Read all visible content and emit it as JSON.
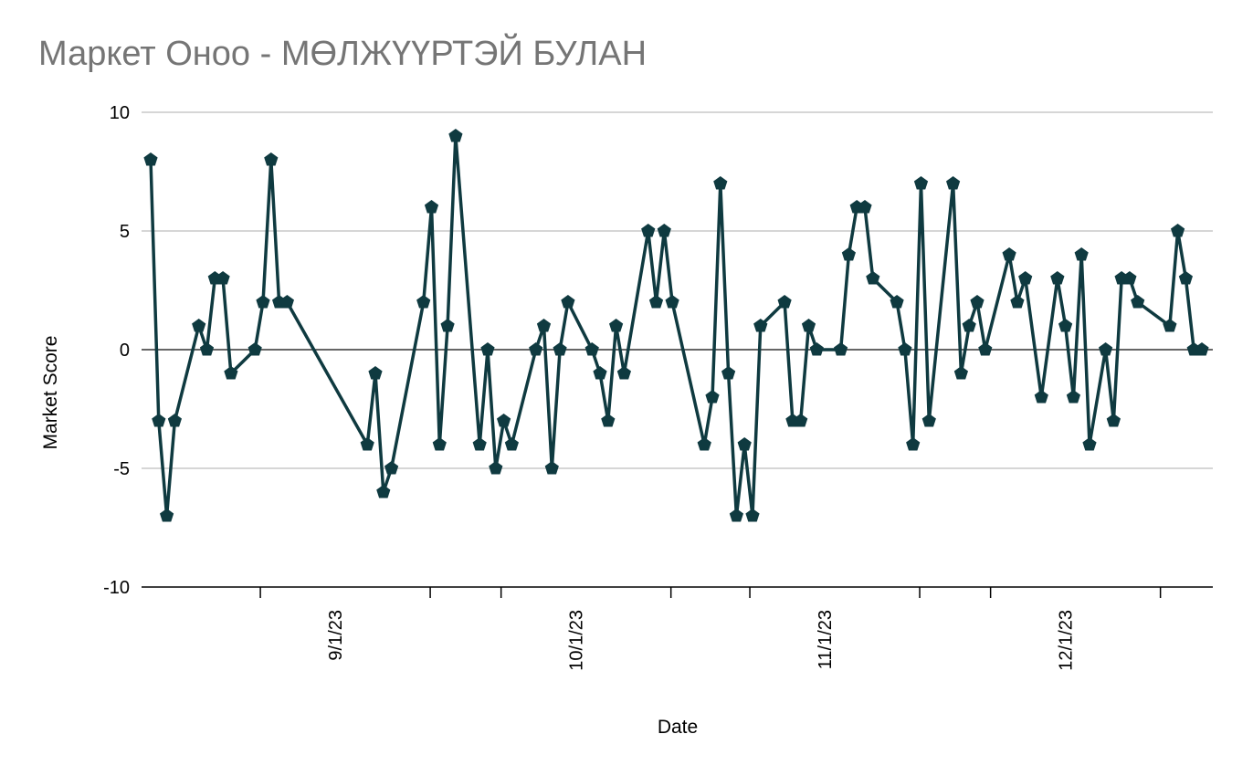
{
  "title": "Маркет Оноо - МӨЛЖҮҮРТЭЙ БУЛАН",
  "chart_data": {
    "type": "line",
    "title": "Маркет Оноо - МӨЛЖҮҮРТЭЙ БУЛАН",
    "xlabel": "Date",
    "ylabel": "Market Score",
    "ylim": [
      -10,
      10
    ],
    "yticks": [
      10,
      5,
      0,
      -5,
      -10
    ],
    "ytick_labels": [
      "10",
      "5",
      "0",
      "-5",
      "-10"
    ],
    "xtick_labels": [
      "9/1/23",
      "10/1/23",
      "11/1/23",
      "12/1/23"
    ],
    "xticks": [
      "2023-09-01",
      "2023-10-01",
      "2023-11-01",
      "2023-12-01"
    ],
    "xlim": [
      "2023-08-08",
      "2023-12-31"
    ],
    "grid": true,
    "marker": "pentagon",
    "line_color": "#0f3a40",
    "series": [
      {
        "x": [
          "2023-08-09",
          "2023-08-10",
          "2023-08-11",
          "2023-08-12",
          "2023-08-15",
          "2023-08-16",
          "2023-08-17",
          "2023-08-18",
          "2023-08-19",
          "2023-08-22",
          "2023-08-23",
          "2023-08-24",
          "2023-08-25",
          "2023-08-26",
          "2023-09-05",
          "2023-09-06",
          "2023-09-07",
          "2023-09-08",
          "2023-09-12",
          "2023-09-13",
          "2023-09-14",
          "2023-09-15",
          "2023-09-16",
          "2023-09-19",
          "2023-09-20",
          "2023-09-21",
          "2023-09-22",
          "2023-09-23",
          "2023-09-26",
          "2023-09-27",
          "2023-09-28",
          "2023-09-29",
          "2023-09-30",
          "2023-10-03",
          "2023-10-04",
          "2023-10-05",
          "2023-10-06",
          "2023-10-07",
          "2023-10-10",
          "2023-10-11",
          "2023-10-12",
          "2023-10-13",
          "2023-10-17",
          "2023-10-18",
          "2023-10-19",
          "2023-10-20",
          "2023-10-21",
          "2023-10-22",
          "2023-10-23",
          "2023-10-24",
          "2023-10-27",
          "2023-10-28",
          "2023-10-29",
          "2023-10-30",
          "2023-10-31",
          "2023-11-03",
          "2023-11-04",
          "2023-11-05",
          "2023-11-06",
          "2023-11-07",
          "2023-11-10",
          "2023-11-11",
          "2023-11-12",
          "2023-11-13",
          "2023-11-14",
          "2023-11-17",
          "2023-11-18",
          "2023-11-19",
          "2023-11-20",
          "2023-11-21",
          "2023-11-24",
          "2023-11-25",
          "2023-11-26",
          "2023-11-28",
          "2023-11-30",
          "2023-12-01",
          "2023-12-02",
          "2023-12-03",
          "2023-12-04",
          "2023-12-06",
          "2023-12-07",
          "2023-12-08",
          "2023-12-09",
          "2023-12-10",
          "2023-12-14",
          "2023-12-15",
          "2023-12-16",
          "2023-12-17",
          "2023-12-18"
        ],
        "values": [
          8,
          -3,
          -7,
          -3,
          1,
          0,
          3,
          3,
          -1,
          0,
          2,
          8,
          2,
          2,
          -4,
          -1,
          -6,
          -5,
          2,
          6,
          -4,
          1,
          9,
          -4,
          0,
          -5,
          -3,
          -4,
          0,
          1,
          -5,
          0,
          2,
          0,
          -1,
          -3,
          1,
          -1,
          5,
          2,
          5,
          2,
          -4,
          -2,
          7,
          -1,
          -7,
          -4,
          -7,
          1,
          2,
          -3,
          -3,
          1,
          0,
          0,
          4,
          6,
          6,
          3,
          2,
          0,
          -4,
          7,
          -3,
          7,
          -1,
          1,
          2,
          0,
          4,
          2,
          3,
          -2,
          3,
          1,
          -2,
          4,
          -4,
          0,
          -3,
          3,
          3,
          2,
          1,
          5,
          3,
          0,
          0
        ]
      }
    ]
  }
}
